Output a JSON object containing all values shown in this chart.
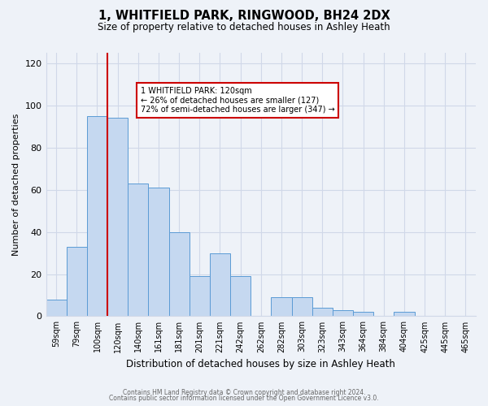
{
  "title": "1, WHITFIELD PARK, RINGWOOD, BH24 2DX",
  "subtitle": "Size of property relative to detached houses in Ashley Heath",
  "xlabel": "Distribution of detached houses by size in Ashley Heath",
  "ylabel": "Number of detached properties",
  "footer_line1": "Contains HM Land Registry data © Crown copyright and database right 2024.",
  "footer_line2": "Contains public sector information licensed under the Open Government Licence v3.0.",
  "bin_labels": [
    "59sqm",
    "79sqm",
    "100sqm",
    "120sqm",
    "140sqm",
    "161sqm",
    "181sqm",
    "201sqm",
    "221sqm",
    "242sqm",
    "262sqm",
    "282sqm",
    "303sqm",
    "323sqm",
    "343sqm",
    "364sqm",
    "384sqm",
    "404sqm",
    "425sqm",
    "445sqm",
    "465sqm"
  ],
  "bar_heights": [
    8,
    33,
    95,
    94,
    63,
    61,
    40,
    19,
    30,
    19,
    0,
    9,
    9,
    4,
    3,
    2,
    0,
    2,
    0,
    0,
    0
  ],
  "bar_color": "#c5d8f0",
  "bar_edge_color": "#5b9bd5",
  "vline_color": "#cc0000",
  "vline_x_index": 3,
  "annotation_text": "1 WHITFIELD PARK: 120sqm\n← 26% of detached houses are smaller (127)\n72% of semi-detached houses are larger (347) →",
  "annotation_box_color": "#cc0000",
  "ylim": [
    0,
    125
  ],
  "yticks": [
    0,
    20,
    40,
    60,
    80,
    100,
    120
  ],
  "grid_color": "#d0d8e8",
  "bg_color": "#eef2f8"
}
